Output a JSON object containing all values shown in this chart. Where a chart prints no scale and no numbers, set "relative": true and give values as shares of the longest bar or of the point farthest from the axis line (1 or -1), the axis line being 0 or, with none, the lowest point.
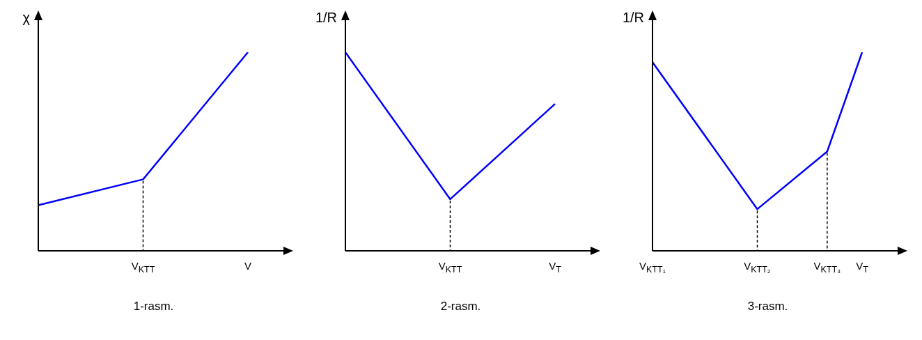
{
  "chart_data": [
    {
      "type": "line",
      "title": "1-rasm.",
      "ylabel": "χ",
      "relative": true,
      "legend": false,
      "grid": false,
      "marker": "none",
      "categories": [
        null,
        "V$_{KTT}$",
        "V"
      ],
      "series": [
        {
          "color": "#0000ff",
          "values": [
            0.23,
            0.36,
            1
          ]
        }
      ]
    },
    {
      "type": "line",
      "title": "2-rasm.",
      "ylabel": "1/R",
      "relative": true,
      "legend": false,
      "grid": false,
      "marker": "none",
      "categories": [
        null,
        "V$_{KTT}$",
        "V$_{T}$"
      ],
      "series": [
        {
          "color": "#0000ff",
          "values": [
            1,
            0.26,
            0.74
          ]
        }
      ]
    },
    {
      "type": "line",
      "title": "3-rasm.",
      "ylabel": "1/R",
      "relative": true,
      "legend": false,
      "grid": false,
      "marker": "none",
      "categories": [
        "V$_{KTT₁}$",
        null,
        null,
        "V$_{KTT₂}$",
        null,
        "V$_{KTT₃}$",
        "V$_{T}$"
      ],
      "series": [
        {
          "color": "#0000ff",
          "values": [
            0.95,
            null,
            null,
            0.21,
            null,
            0.5,
            1
          ]
        }
      ]
    }
  ]
}
